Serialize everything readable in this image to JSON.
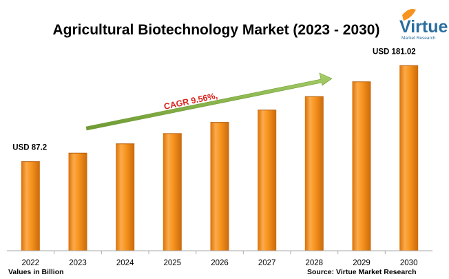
{
  "chart_data": {
    "type": "bar",
    "title": "Agricultural Biotechnology Market (2023 - 2030)",
    "categories": [
      "2022",
      "2023",
      "2024",
      "2025",
      "2026",
      "2027",
      "2028",
      "2029",
      "2030"
    ],
    "values": [
      87.2,
      95.5,
      104.6,
      114.6,
      125.6,
      137.6,
      150.8,
      165.2,
      181.02
    ],
    "ylim": [
      0,
      190
    ],
    "grid": false,
    "legend": "none",
    "bar_color": "#f7931e",
    "annotations": {
      "first_value_label": "USD 87.2",
      "last_value_label": "USD 181.02",
      "cagr_label": "CAGR 9.56%,"
    },
    "footer_left": "Values in Billion",
    "footer_right": "Source: Virtue Market Research"
  },
  "logo": {
    "text": "Virtue",
    "subtext": "Market Research",
    "color": "#2a6e9e",
    "accent": "#f7931e"
  },
  "colors": {
    "arrow": "#8bb84a",
    "cagr_text": "#d9201b",
    "axis": "#aaaaaa"
  }
}
